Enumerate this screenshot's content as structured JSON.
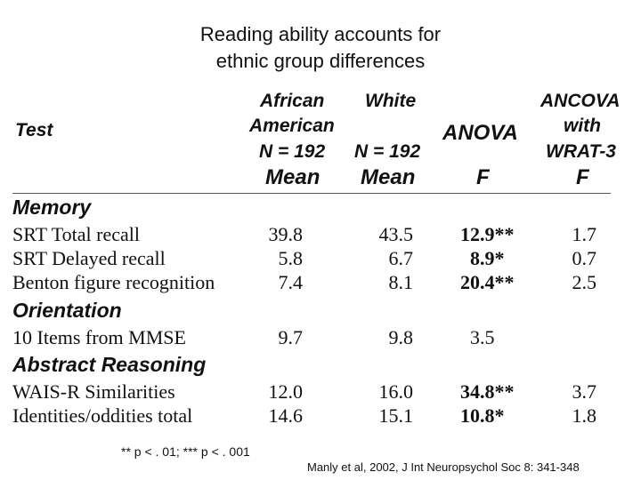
{
  "title": {
    "line1": "Reading ability accounts for",
    "line2": "ethnic group differences"
  },
  "headers": {
    "test": "Test",
    "african_american": [
      "African",
      "American",
      "N = 192",
      "Mean"
    ],
    "white": [
      "White",
      "N = 192",
      "Mean"
    ],
    "anova": [
      "ANOVA",
      "F"
    ],
    "ancova": [
      "ANCOVA",
      "with",
      "WRAT-3",
      "F"
    ]
  },
  "sections": [
    {
      "name": "Memory",
      "rows": [
        {
          "test": "SRT Total recall",
          "aa_mean": "39.8",
          "white_mean": "43.5",
          "anova_f": "12.9**",
          "anova_bold": true,
          "ancova_f": "1.7"
        },
        {
          "test": "SRT Delayed recall",
          "aa_mean": "5.8",
          "white_mean": "6.7",
          "anova_f": "8.9*",
          "anova_bold": true,
          "ancova_f": "0.7"
        },
        {
          "test": "Benton figure recognition",
          "aa_mean": "7.4",
          "white_mean": "8.1",
          "anova_f": "20.4**",
          "anova_bold": true,
          "ancova_f": "2.5"
        }
      ]
    },
    {
      "name": "Orientation",
      "rows": [
        {
          "test": "10 Items from MMSE",
          "aa_mean": "9.7",
          "white_mean": "9.8",
          "anova_f": "3.5",
          "anova_bold": false,
          "ancova_f": ""
        }
      ]
    },
    {
      "name": "Abstract Reasoning",
      "rows": [
        {
          "test": "WAIS-R Similarities",
          "aa_mean": "12.0",
          "white_mean": "16.0",
          "anova_f": "34.8**",
          "anova_bold": true,
          "ancova_f": "3.7"
        },
        {
          "test": "Identities/oddities total",
          "aa_mean": "14.6",
          "white_mean": "15.1",
          "anova_f": "10.8*",
          "anova_bold": true,
          "ancova_f": "1.8"
        }
      ]
    }
  ],
  "footnote": "** p < . 01; *** p < . 001",
  "citation": "Manly et al, 2002, J Int Neuropsychol Soc 8: 341-348"
}
